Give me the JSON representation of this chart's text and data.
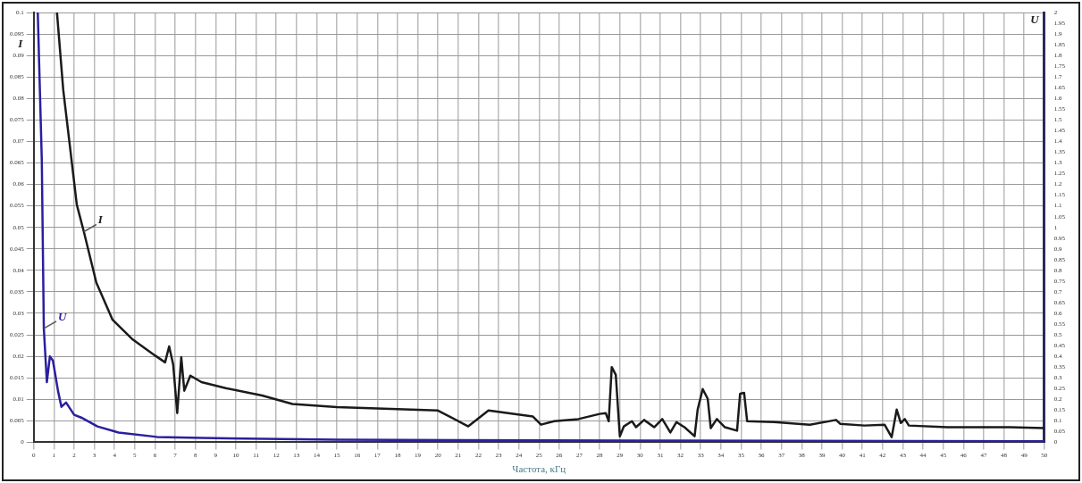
{
  "chart_data": {
    "type": "line",
    "xlabel": "Частота, кГц",
    "ylabel": "I",
    "y2label": "U",
    "legend": false,
    "grid": true,
    "marker": "none",
    "line_style": "solid",
    "xlim": [
      0,
      50
    ],
    "xticks": [
      0,
      1,
      2,
      3,
      4,
      5,
      6,
      7,
      8,
      9,
      10,
      11,
      12,
      13,
      14,
      15,
      16,
      17,
      18,
      19,
      20,
      21,
      22,
      23,
      24,
      25,
      26,
      27,
      28,
      29,
      30,
      31,
      32,
      33,
      34,
      35,
      36,
      37,
      38,
      39,
      40,
      41,
      42,
      43,
      44,
      45,
      46,
      47,
      48,
      49,
      50
    ],
    "ylim": [
      0,
      0.1
    ],
    "yticks": [
      0,
      0.005,
      0.01,
      0.015,
      0.02,
      0.025,
      0.03,
      0.035,
      0.04,
      0.045,
      0.05,
      0.055,
      0.06,
      0.065,
      0.07,
      0.075,
      0.08,
      0.085,
      0.09,
      0.095,
      0.1
    ],
    "y2lim": [
      0,
      2
    ],
    "y2ticks": [
      0,
      0.05,
      0.1,
      0.15,
      0.2,
      0.25,
      0.3,
      0.35,
      0.4,
      0.45,
      0.5,
      0.55,
      0.6,
      0.65,
      0.7,
      0.75,
      0.8,
      0.85,
      0.9,
      0.95,
      1,
      1.05,
      1.1,
      1.15,
      1.2,
      1.25,
      1.3,
      1.35,
      1.4,
      1.45,
      1.5,
      1.55,
      1.6,
      1.65,
      1.7,
      1.75,
      1.8,
      1.85,
      1.9,
      1.95,
      2
    ],
    "series": [
      {
        "name": "I",
        "color": "#1a1a1a",
        "x": [
          1.15,
          1.46,
          1.77,
          2.13,
          2.48,
          3.1,
          3.3,
          3.9,
          4.9,
          6.0,
          6.5,
          6.7,
          6.9,
          7.1,
          7.3,
          7.45,
          7.75,
          8.3,
          9.5,
          11.3,
          12.8,
          15,
          20,
          21.5,
          22.5,
          24.7,
          25.1,
          25.75,
          26.95,
          28.0,
          28.3,
          28.45,
          28.6,
          28.8,
          29.0,
          29.2,
          29.6,
          29.8,
          30.2,
          30.7,
          31.1,
          31.5,
          31.8,
          32.2,
          32.7,
          32.85,
          33.1,
          33.35,
          33.5,
          33.8,
          34.2,
          34.8,
          34.95,
          35.15,
          35.3,
          36.65,
          38.4,
          39.7,
          39.9,
          41.1,
          42.1,
          42.45,
          42.7,
          42.9,
          43.1,
          43.3,
          45.2,
          48.3,
          50
        ],
        "values": [
          0.1,
          0.082,
          0.0697,
          0.0553,
          0.049,
          0.0371,
          0.035,
          0.0285,
          0.0239,
          0.0202,
          0.0186,
          0.0223,
          0.0181,
          0.0068,
          0.0198,
          0.012,
          0.0155,
          0.014,
          0.0126,
          0.0109,
          0.0089,
          0.0082,
          0.0074,
          0.0037,
          0.0074,
          0.006,
          0.0041,
          0.0049,
          0.0054,
          0.0066,
          0.0068,
          0.0049,
          0.0175,
          0.0157,
          0.0014,
          0.0037,
          0.0049,
          0.0035,
          0.0052,
          0.0035,
          0.0054,
          0.0023,
          0.0047,
          0.0035,
          0.0014,
          0.0076,
          0.0124,
          0.0101,
          0.0033,
          0.0054,
          0.0035,
          0.0027,
          0.0113,
          0.0115,
          0.0049,
          0.0047,
          0.0041,
          0.0052,
          0.0043,
          0.0039,
          0.0041,
          0.0012,
          0.0076,
          0.0045,
          0.0054,
          0.0039,
          0.0035,
          0.0035,
          0.0033
        ]
      },
      {
        "name": "U",
        "color": "#2a1f9e",
        "axis": "y2",
        "x": [
          0.2,
          0.4,
          0.5,
          0.65,
          0.8,
          0.95,
          1.2,
          1.37,
          1.6,
          2.0,
          2.35,
          3.15,
          4.2,
          6.1,
          8.3,
          15,
          30,
          50
        ],
        "values": [
          2,
          1.31,
          0.53,
          0.28,
          0.4,
          0.38,
          0.24,
          0.165,
          0.185,
          0.128,
          0.115,
          0.074,
          0.045,
          0.025,
          0.02,
          0.012,
          0.008,
          0.005
        ]
      }
    ]
  }
}
